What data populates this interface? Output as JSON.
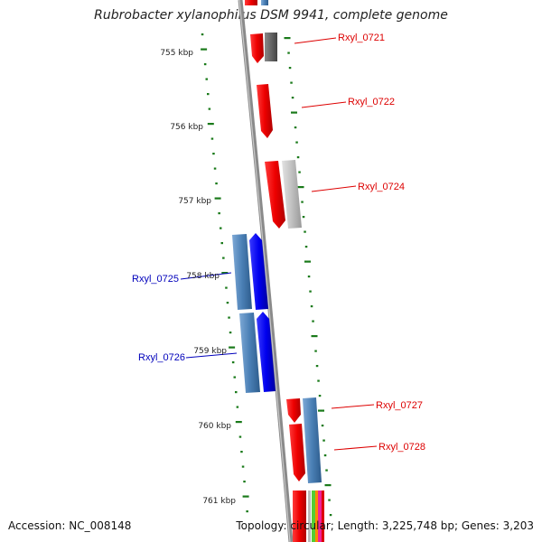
{
  "title": "Rubrobacter xylanophilus DSM 9941, complete genome",
  "footer": {
    "accession": "Accession: NC_008148",
    "topology": "Topology: circular; Length: 3,225,748 bp; Genes: 3,203"
  },
  "scale_labels": [
    "755 kbp",
    "756 kbp",
    "757 kbp",
    "758 kbp",
    "759 kbp",
    "760 kbp",
    "761 kbp"
  ],
  "genes": [
    {
      "label": "Rxyl_0721",
      "color": "#dd0000"
    },
    {
      "label": "Rxyl_0722",
      "color": "#dd0000"
    },
    {
      "label": "Rxyl_0724",
      "color": "#dd0000"
    },
    {
      "label": "Rxyl_0725",
      "color": "#0000bb"
    },
    {
      "label": "Rxyl_0726",
      "color": "#0000bb"
    },
    {
      "label": "Rxyl_0727",
      "color": "#dd0000"
    },
    {
      "label": "Rxyl_0728",
      "color": "#dd0000"
    }
  ],
  "colors": {
    "forward_strand": "#ff0000",
    "reverse_strand": "#0000ff",
    "blast_hit_blue": "#4a7fb5",
    "blast_hit_gray": "#bbbbbb",
    "scale_tick": "#1a7a1a",
    "backbone": "#888888"
  }
}
